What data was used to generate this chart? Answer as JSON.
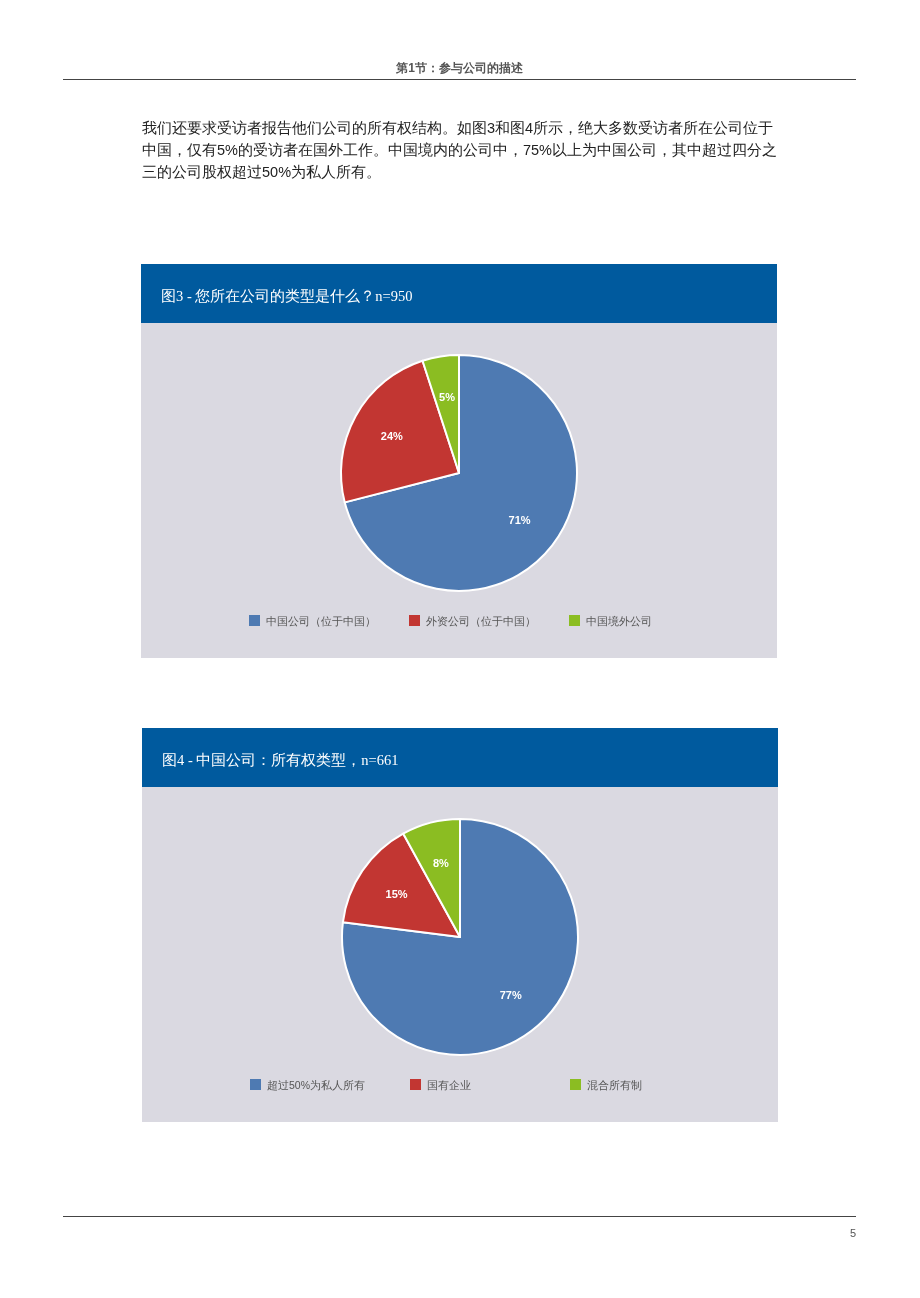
{
  "chart_data": [
    {
      "type": "pie",
      "title": "图3 - 您所在公司的类型是什么？n=950",
      "annotations": [
        "第1节：参与公司的描述",
        "我们还要求受访者报告他们公司的所有权结构。如图3和图4所示，绝大多数受访者所在公司位于中国，仅有5%的受访者在国外工作。中国境内的公司中，75%以上为中国公司，其中超过四分之三的公司股权超过50%为私人所有。"
      ],
      "categories": [
        "中国公司（位于中国）",
        "外资公司（位于中国）",
        "中国境外公司"
      ],
      "values": [
        71,
        24,
        5
      ],
      "value_labels": [
        "71%",
        "24%",
        "5%"
      ],
      "colors": [
        "#4e7ab2",
        "#c23632",
        "#8bbd22"
      ],
      "legend": "bottom"
    },
    {
      "type": "pie",
      "title": "图4 - 中国公司：所有权类型，n=661",
      "annotations": [
        "5"
      ],
      "categories": [
        "超过50%为私人所有",
        "国有企业",
        "混合所有制"
      ],
      "values": [
        77,
        15,
        8
      ],
      "value_labels": [
        "77%",
        "15%",
        "8%"
      ],
      "colors": [
        "#4e7ab2",
        "#c23632",
        "#8bbd22"
      ],
      "legend": "bottom"
    }
  ]
}
